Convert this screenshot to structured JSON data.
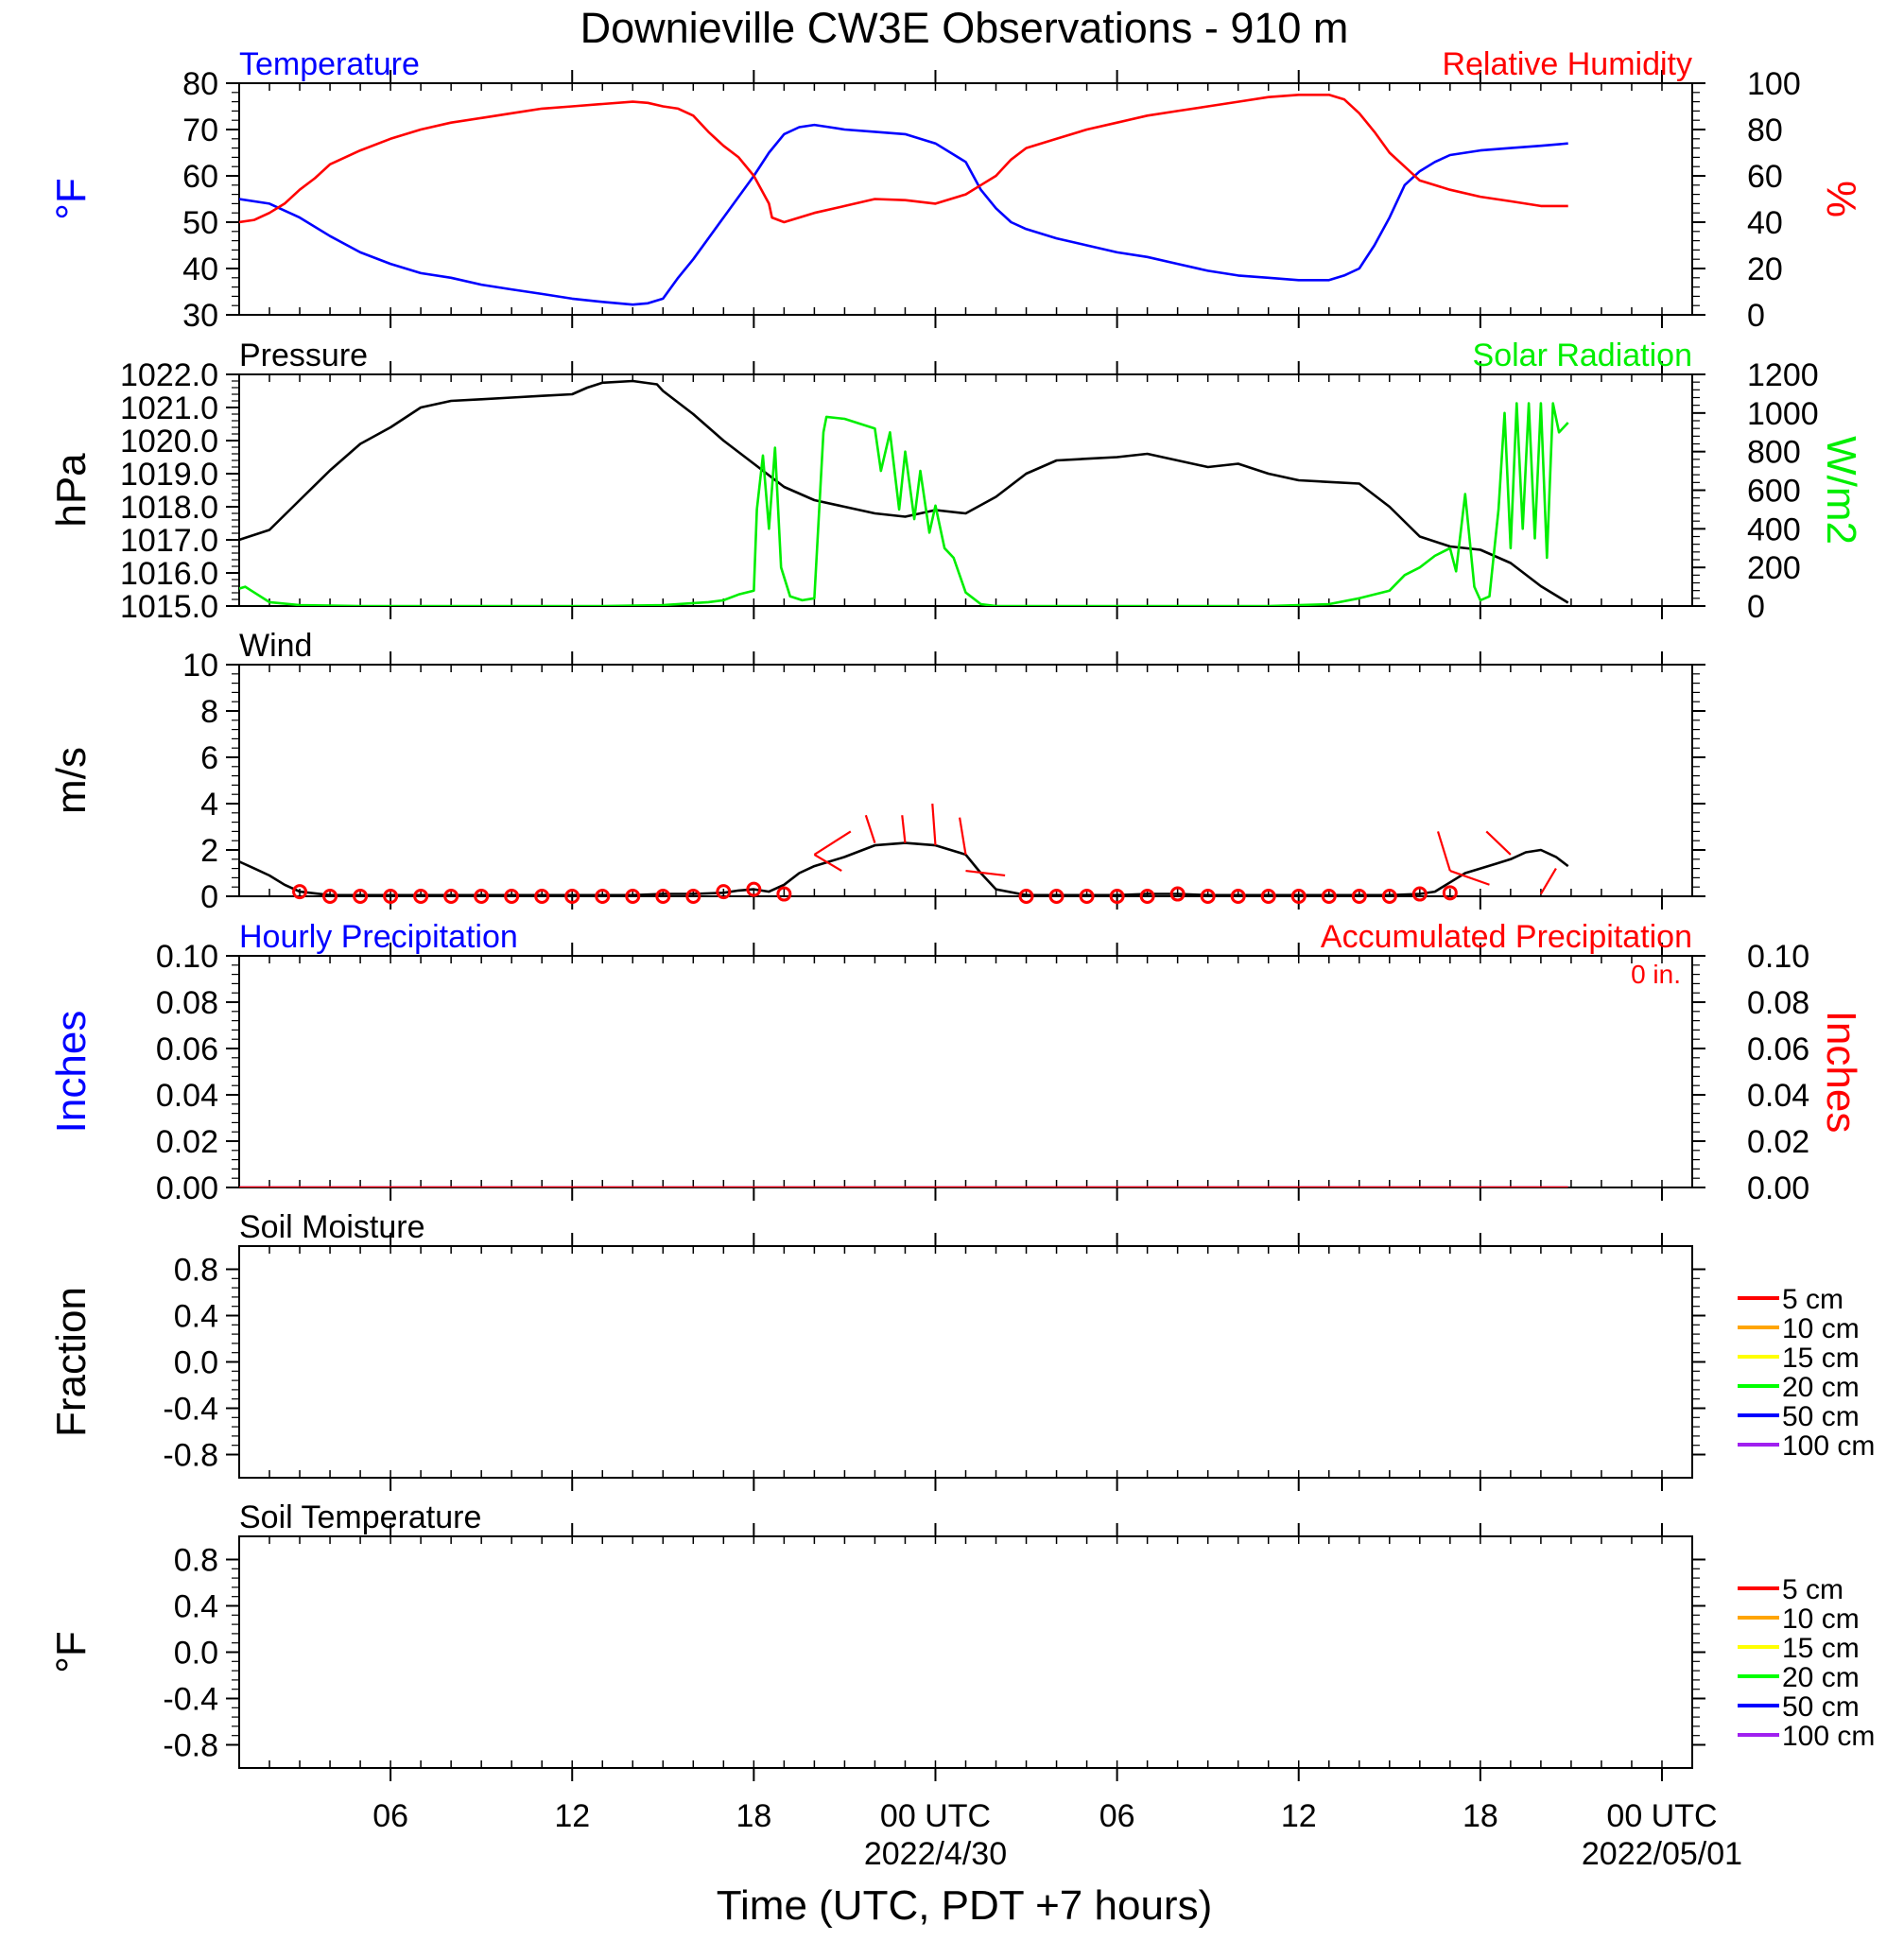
{
  "title": "Downieville CW3E Observations - 910 m",
  "xlabel": "Time (UTC, PDT +7 hours)",
  "time_axis": {
    "range_hours": [
      0,
      48
    ],
    "tick_labels": [
      {
        "hour": 5,
        "text": "06"
      },
      {
        "hour": 11,
        "text": "12"
      },
      {
        "hour": 17,
        "text": "18"
      },
      {
        "hour": 23,
        "text": "00 UTC",
        "date": "2022/4/30"
      },
      {
        "hour": 29,
        "text": "06"
      },
      {
        "hour": 35,
        "text": "12"
      },
      {
        "hour": 41,
        "text": "18"
      },
      {
        "hour": 47,
        "text": "00 UTC",
        "date": "2022/05/01"
      }
    ]
  },
  "colors": {
    "blue": "#0000ff",
    "red": "#ff0000",
    "green": "#00ee00",
    "black": "#000000"
  },
  "chart_data": [
    {
      "type": "line",
      "title_left": "Temperature",
      "title_right": "Relative Humidity",
      "ylabel_left": "°F",
      "ylabel_right": "%",
      "ylim_left": [
        30,
        80
      ],
      "yticks_left": [
        "30",
        "40",
        "50",
        "60",
        "70",
        "80"
      ],
      "ylim_right": [
        0,
        100
      ],
      "yticks_right": [
        "0",
        "20",
        "40",
        "60",
        "80",
        "100"
      ],
      "series": [
        {
          "name": "Temperature",
          "color": "#0000ff",
          "axis": "left",
          "x": [
            0,
            1,
            2,
            3,
            4,
            5,
            6,
            7,
            8,
            9,
            10,
            11,
            12,
            13,
            13.5,
            14,
            14.5,
            15,
            16,
            17,
            17.5,
            18,
            18.5,
            19,
            19.5,
            20,
            21,
            22,
            23,
            24,
            24.5,
            25,
            25.5,
            26,
            27,
            28,
            29,
            30,
            31,
            32,
            33,
            34,
            35,
            36,
            36.5,
            37,
            37.5,
            38,
            38.5,
            39,
            39.5,
            40,
            41,
            42,
            43,
            43.9
          ],
          "y": [
            55,
            54,
            51,
            47,
            43.5,
            41,
            39,
            38,
            36.5,
            35.5,
            34.5,
            33.5,
            32.8,
            32.2,
            32.5,
            33.5,
            38,
            42,
            51,
            60,
            65,
            69,
            70.5,
            71,
            70.5,
            70,
            69.5,
            69,
            67,
            63,
            57,
            53,
            50,
            48.5,
            46.5,
            45,
            43.5,
            42.5,
            41,
            39.5,
            38.5,
            38,
            37.5,
            37.5,
            38.5,
            40,
            45,
            51,
            58,
            61,
            63,
            64.5,
            65.5,
            66,
            66.5,
            67
          ]
        },
        {
          "name": "Relative Humidity",
          "color": "#ff0000",
          "axis": "right",
          "x": [
            0,
            0.5,
            1,
            1.5,
            2,
            2.5,
            3,
            4,
            5,
            6,
            7,
            8,
            9,
            10,
            11,
            12,
            13,
            13.5,
            14,
            14.5,
            15,
            15.5,
            16,
            16.5,
            17,
            17.5,
            17.6,
            18,
            19,
            20,
            21,
            22,
            23,
            24,
            24.5,
            25,
            25.5,
            26,
            27,
            28,
            29,
            30,
            31,
            32,
            33,
            34,
            35,
            36,
            36.5,
            37,
            37.5,
            38,
            38.5,
            39,
            40,
            41,
            42,
            43,
            43.9
          ],
          "y": [
            40,
            41,
            44,
            48,
            54,
            59,
            65,
            71,
            76,
            80,
            83,
            85,
            87,
            89,
            90,
            91,
            92,
            91.5,
            90,
            89,
            86,
            79,
            73,
            68,
            60,
            48,
            42,
            40,
            44,
            47,
            50,
            49.5,
            48,
            52,
            56,
            60,
            67,
            72,
            76,
            80,
            83,
            86,
            88,
            90,
            92,
            94,
            95,
            95,
            93,
            87,
            79,
            70,
            64,
            58,
            54,
            51,
            49,
            47,
            47
          ]
        }
      ]
    },
    {
      "type": "line",
      "title_left": "Pressure",
      "title_right": "Solar Radiation",
      "ylabel_left": "hPa",
      "ylabel_right": "W/m2",
      "ylim_left": [
        1015,
        1022
      ],
      "yticks_left": [
        "1015.0",
        "1016.0",
        "1017.0",
        "1018.0",
        "1019.0",
        "1020.0",
        "1021.0",
        "1022.0"
      ],
      "ylim_right": [
        0,
        1200
      ],
      "yticks_right": [
        "0",
        "200",
        "400",
        "600",
        "800",
        "1000",
        "1200"
      ],
      "series": [
        {
          "name": "Pressure",
          "color": "#000000",
          "axis": "left",
          "x": [
            0,
            1,
            2,
            3,
            4,
            5,
            6,
            7,
            8,
            9,
            10,
            11,
            11.5,
            12,
            13,
            13.8,
            14,
            15,
            16,
            17,
            18,
            19,
            20,
            21,
            22,
            23,
            24,
            25,
            26,
            27,
            28,
            29,
            30,
            31,
            32,
            33,
            34,
            35,
            36,
            37,
            38,
            39,
            40,
            41,
            42,
            43,
            43.9
          ],
          "y": [
            1017,
            1017.3,
            1018.2,
            1019.1,
            1019.9,
            1020.4,
            1021,
            1021.2,
            1021.25,
            1021.3,
            1021.35,
            1021.4,
            1021.6,
            1021.75,
            1021.8,
            1021.7,
            1021.5,
            1020.8,
            1020,
            1019.3,
            1018.6,
            1018.2,
            1018,
            1017.8,
            1017.7,
            1017.9,
            1017.8,
            1018.3,
            1019,
            1019.4,
            1019.45,
            1019.5,
            1019.6,
            1019.4,
            1019.2,
            1019.3,
            1019,
            1018.8,
            1018.75,
            1018.7,
            1018,
            1017.1,
            1016.8,
            1016.7,
            1016.3,
            1015.6,
            1015.1
          ]
        },
        {
          "name": "Solar Radiation",
          "color": "#00ee00",
          "axis": "right",
          "x": [
            0,
            0.2,
            0.4,
            1,
            2,
            4,
            6,
            8,
            10,
            12,
            14,
            15,
            15.5,
            16,
            16.5,
            17,
            17.1,
            17.3,
            17.5,
            17.7,
            17.9,
            18.2,
            18.6,
            19,
            19.3,
            19.4,
            20,
            21,
            21.2,
            21.5,
            21.8,
            22,
            22.3,
            22.5,
            22.8,
            23,
            23.3,
            23.6,
            24,
            24.5,
            25,
            26,
            28,
            30,
            32,
            34,
            36,
            37,
            38,
            38.5,
            39,
            39.5,
            40,
            40.2,
            40.5,
            40.8,
            41,
            41.3,
            41.6,
            41.8,
            42,
            42.2,
            42.4,
            42.6,
            42.8,
            43,
            43.2,
            43.4,
            43.6,
            43.9
          ],
          "y": [
            90,
            100,
            80,
            20,
            5,
            0,
            0,
            0,
            0,
            0,
            5,
            15,
            20,
            30,
            60,
            80,
            500,
            780,
            400,
            820,
            200,
            50,
            30,
            40,
            900,
            980,
            970,
            920,
            700,
            900,
            500,
            800,
            450,
            700,
            380,
            520,
            300,
            250,
            70,
            10,
            0,
            0,
            0,
            0,
            0,
            0,
            10,
            40,
            80,
            160,
            200,
            260,
            300,
            180,
            580,
            100,
            30,
            50,
            500,
            1000,
            300,
            1050,
            400,
            1050,
            350,
            1050,
            250,
            1050,
            900,
            950
          ]
        }
      ]
    },
    {
      "type": "line",
      "title_left": "Wind",
      "ylabel_left": "m/s",
      "ylim_left": [
        0,
        10
      ],
      "yticks_left": [
        "0",
        "2",
        "4",
        "6",
        "8",
        "10"
      ],
      "series": [
        {
          "name": "Wind",
          "color": "#000000",
          "axis": "left",
          "x": [
            0,
            0.5,
            1,
            1.5,
            2,
            3,
            4,
            5,
            6,
            7,
            8,
            9,
            10,
            11,
            12,
            13,
            14,
            15,
            16,
            16.5,
            17,
            17.5,
            18,
            18.5,
            19,
            19.5,
            20,
            21,
            22,
            23,
            24,
            24.5,
            25,
            26,
            27,
            28,
            29,
            30,
            31,
            32,
            33,
            34,
            35,
            36,
            37,
            38,
            39,
            39.5,
            40,
            40.5,
            41,
            41.5,
            42,
            42.5,
            43,
            43.5,
            43.9
          ],
          "y": [
            1.5,
            1.2,
            0.9,
            0.5,
            0.2,
            0.05,
            0.05,
            0.05,
            0.05,
            0.05,
            0.05,
            0.05,
            0.05,
            0.05,
            0.05,
            0.05,
            0.1,
            0.1,
            0.15,
            0.25,
            0.3,
            0.2,
            0.5,
            1,
            1.3,
            1.5,
            1.7,
            2.2,
            2.3,
            2.2,
            1.8,
            1,
            0.3,
            0.05,
            0.05,
            0.05,
            0.05,
            0.1,
            0.1,
            0.05,
            0.05,
            0.05,
            0.05,
            0.05,
            0.05,
            0.05,
            0.1,
            0.2,
            0.6,
            1,
            1.2,
            1.4,
            1.6,
            1.9,
            2,
            1.7,
            1.3
          ]
        }
      ],
      "markers": {
        "color": "#ff0000",
        "x": [
          2,
          3,
          4,
          5,
          6,
          7,
          8,
          9,
          10,
          11,
          12,
          13,
          14,
          15,
          16,
          17,
          18,
          26,
          27,
          28,
          29,
          30,
          31,
          32,
          33,
          34,
          35,
          36,
          37,
          38,
          39,
          40
        ],
        "y": [
          0.2,
          0,
          0,
          0,
          0,
          0,
          0,
          0,
          0,
          0,
          0,
          0,
          0,
          0,
          0.2,
          0.3,
          0.1,
          0,
          0,
          0,
          0,
          0,
          0.1,
          0,
          0,
          0,
          0,
          0,
          0,
          0,
          0.1,
          0.15
        ]
      },
      "barbs": {
        "color": "#ff0000",
        "segments": [
          [
            19,
            1.8,
            20.2,
            2.8
          ],
          [
            19,
            1.8,
            19.9,
            1.1
          ],
          [
            21,
            2.3,
            20.7,
            3.5
          ],
          [
            22,
            2.3,
            21.9,
            3.5
          ],
          [
            23,
            2.2,
            22.9,
            4.0
          ],
          [
            24,
            1.8,
            23.8,
            3.4
          ],
          [
            24,
            1.1,
            25.3,
            0.9
          ],
          [
            40,
            1.1,
            39.6,
            2.8
          ],
          [
            40,
            1.1,
            41.3,
            0.5
          ],
          [
            42,
            1.8,
            41.2,
            2.8
          ],
          [
            43,
            0.1,
            43.5,
            1.2
          ]
        ]
      }
    },
    {
      "type": "line",
      "title_left": "Hourly Precipitation",
      "title_right": "Accumulated Precipitation",
      "annotation": "0 in.",
      "ylabel_left": "Inches",
      "ylabel_right": "Inches",
      "ylim_left": [
        0,
        0.1
      ],
      "yticks_left": [
        "0.00",
        "0.02",
        "0.04",
        "0.06",
        "0.08",
        "0.10"
      ],
      "ylim_right": [
        0,
        0.1
      ],
      "yticks_right": [
        "0.00",
        "0.02",
        "0.04",
        "0.06",
        "0.08",
        "0.10"
      ],
      "series": [
        {
          "name": "Hourly Precipitation",
          "color": "#0000ff",
          "axis": "left",
          "x": [
            0,
            43.9
          ],
          "y": [
            0,
            0
          ]
        },
        {
          "name": "Accumulated Precipitation",
          "color": "#ff0000",
          "axis": "right",
          "x": [
            0,
            43.9
          ],
          "y": [
            0,
            0
          ]
        }
      ]
    },
    {
      "type": "line",
      "title_left": "Soil Moisture",
      "ylabel_left": "Fraction",
      "ylim_left": [
        -1,
        1
      ],
      "yticks_left": [
        "-0.8",
        "-0.4",
        "0.0",
        "0.4",
        "0.8"
      ],
      "legend_placement": "right",
      "legend": [
        {
          "label": "5 cm",
          "color": "#ff0000"
        },
        {
          "label": "10 cm",
          "color": "#ffa500"
        },
        {
          "label": "15 cm",
          "color": "#ffff00"
        },
        {
          "label": "20 cm",
          "color": "#00ff00"
        },
        {
          "label": "50 cm",
          "color": "#0000ff"
        },
        {
          "label": "100 cm",
          "color": "#a020f0"
        }
      ],
      "series": []
    },
    {
      "type": "line",
      "title_left": "Soil Temperature",
      "ylabel_left": "°F",
      "ylim_left": [
        -1,
        1
      ],
      "yticks_left": [
        "-0.8",
        "-0.4",
        "0.0",
        "0.4",
        "0.8"
      ],
      "legend_placement": "right",
      "legend": [
        {
          "label": "5 cm",
          "color": "#ff0000"
        },
        {
          "label": "10 cm",
          "color": "#ffa500"
        },
        {
          "label": "15 cm",
          "color": "#ffff00"
        },
        {
          "label": "20 cm",
          "color": "#00ff00"
        },
        {
          "label": "50 cm",
          "color": "#0000ff"
        },
        {
          "label": "100 cm",
          "color": "#a020f0"
        }
      ],
      "series": []
    }
  ]
}
